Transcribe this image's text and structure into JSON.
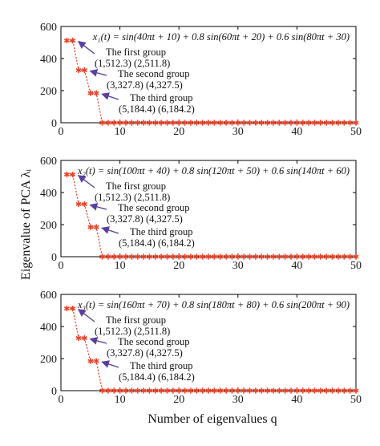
{
  "chart_data": [
    {
      "type": "scatter",
      "equation": "x₁(t) = sin(40πt + 10) + 0.8 sin(60πt + 20) + 0.6 sin(80πt + 30)",
      "xlim": [
        0,
        50
      ],
      "ylim": [
        0,
        600
      ],
      "xticks": [
        0,
        10,
        20,
        30,
        40,
        50
      ],
      "yticks": [
        0,
        200,
        400,
        600
      ],
      "x": [
        1,
        2,
        3,
        4,
        5,
        6,
        7,
        8,
        9,
        10,
        11,
        12,
        13,
        14,
        15,
        16,
        17,
        18,
        19,
        20,
        21,
        22,
        23,
        24,
        25,
        26,
        27,
        28,
        29,
        30,
        31,
        32,
        33,
        34,
        35,
        36,
        37,
        38,
        39,
        40,
        41,
        42,
        43,
        44,
        45,
        46,
        47,
        48,
        49,
        50
      ],
      "y": [
        512.3,
        511.8,
        327.8,
        327.5,
        184.4,
        184.2,
        0,
        0,
        0,
        0,
        0,
        0,
        0,
        0,
        0,
        0,
        0,
        0,
        0,
        0,
        0,
        0,
        0,
        0,
        0,
        0,
        0,
        0,
        0,
        0,
        0,
        0,
        0,
        0,
        0,
        0,
        0,
        0,
        0,
        0,
        0,
        0,
        0,
        0,
        0,
        0,
        0,
        0,
        0,
        0
      ],
      "annotations": [
        {
          "title": "The first group",
          "values": "(1,512.3) (2,511.8)",
          "point": [
            2,
            511.8
          ]
        },
        {
          "title": "The second group",
          "values": "(3,327.8) (4,327.5)",
          "point": [
            4,
            327.5
          ]
        },
        {
          "title": "The third group",
          "values": "(5,184.4) (6,184.2)",
          "point": [
            6,
            184.2
          ]
        }
      ]
    },
    {
      "type": "scatter",
      "equation": "x₂(t) = sin(100πt + 40) + 0.8 sin(120πt + 50) + 0.6 sin(140πt + 60)",
      "xlim": [
        0,
        50
      ],
      "ylim": [
        0,
        600
      ],
      "xticks": [
        0,
        10,
        20,
        30,
        40,
        50
      ],
      "yticks": [
        0,
        200,
        400,
        600
      ],
      "x": [
        1,
        2,
        3,
        4,
        5,
        6,
        7,
        8,
        9,
        10,
        11,
        12,
        13,
        14,
        15,
        16,
        17,
        18,
        19,
        20,
        21,
        22,
        23,
        24,
        25,
        26,
        27,
        28,
        29,
        30,
        31,
        32,
        33,
        34,
        35,
        36,
        37,
        38,
        39,
        40,
        41,
        42,
        43,
        44,
        45,
        46,
        47,
        48,
        49,
        50
      ],
      "y": [
        512.3,
        511.8,
        327.8,
        327.5,
        184.4,
        184.2,
        0,
        0,
        0,
        0,
        0,
        0,
        0,
        0,
        0,
        0,
        0,
        0,
        0,
        0,
        0,
        0,
        0,
        0,
        0,
        0,
        0,
        0,
        0,
        0,
        0,
        0,
        0,
        0,
        0,
        0,
        0,
        0,
        0,
        0,
        0,
        0,
        0,
        0,
        0,
        0,
        0,
        0,
        0,
        0
      ],
      "annotations": [
        {
          "title": "The first group",
          "values": "(1,512.3) (2,511.8)",
          "point": [
            2,
            511.8
          ]
        },
        {
          "title": "The second group",
          "values": "(3,327.8) (4,327.5)",
          "point": [
            4,
            327.5
          ]
        },
        {
          "title": "The third group",
          "values": "(5,184.4) (6,184.2)",
          "point": [
            6,
            184.2
          ]
        }
      ]
    },
    {
      "type": "scatter",
      "equation": "x₃(t) = sin(160πt + 70) + 0.8 sin(180πt + 80) + 0.6 sin(200πt + 90)",
      "xlim": [
        0,
        50
      ],
      "ylim": [
        0,
        600
      ],
      "xticks": [
        0,
        10,
        20,
        30,
        40,
        50
      ],
      "yticks": [
        0,
        200,
        400,
        600
      ],
      "x": [
        1,
        2,
        3,
        4,
        5,
        6,
        7,
        8,
        9,
        10,
        11,
        12,
        13,
        14,
        15,
        16,
        17,
        18,
        19,
        20,
        21,
        22,
        23,
        24,
        25,
        26,
        27,
        28,
        29,
        30,
        31,
        32,
        33,
        34,
        35,
        36,
        37,
        38,
        39,
        40,
        41,
        42,
        43,
        44,
        45,
        46,
        47,
        48,
        49,
        50
      ],
      "y": [
        512.3,
        511.8,
        327.8,
        327.5,
        184.4,
        184.2,
        0,
        0,
        0,
        0,
        0,
        0,
        0,
        0,
        0,
        0,
        0,
        0,
        0,
        0,
        0,
        0,
        0,
        0,
        0,
        0,
        0,
        0,
        0,
        0,
        0,
        0,
        0,
        0,
        0,
        0,
        0,
        0,
        0,
        0,
        0,
        0,
        0,
        0,
        0,
        0,
        0,
        0,
        0,
        0
      ],
      "annotations": [
        {
          "title": "The first group",
          "values": "(1,512.3) (2,511.8)",
          "point": [
            2,
            511.8
          ]
        },
        {
          "title": "The second group",
          "values": "(3,327.8) (4,327.5)",
          "point": [
            4,
            327.5
          ]
        },
        {
          "title": "The third group",
          "values": "(5,184.4) (6,184.2)",
          "point": [
            6,
            184.2
          ]
        }
      ]
    }
  ],
  "figure": {
    "xlabel": "Number of eigenvalues q",
    "ylabel": "Eigenvalue of PCA λᵢ",
    "marker_color": "#e8432a",
    "line_color": "#e8432a",
    "arrow_color": "#5b3fa0"
  }
}
